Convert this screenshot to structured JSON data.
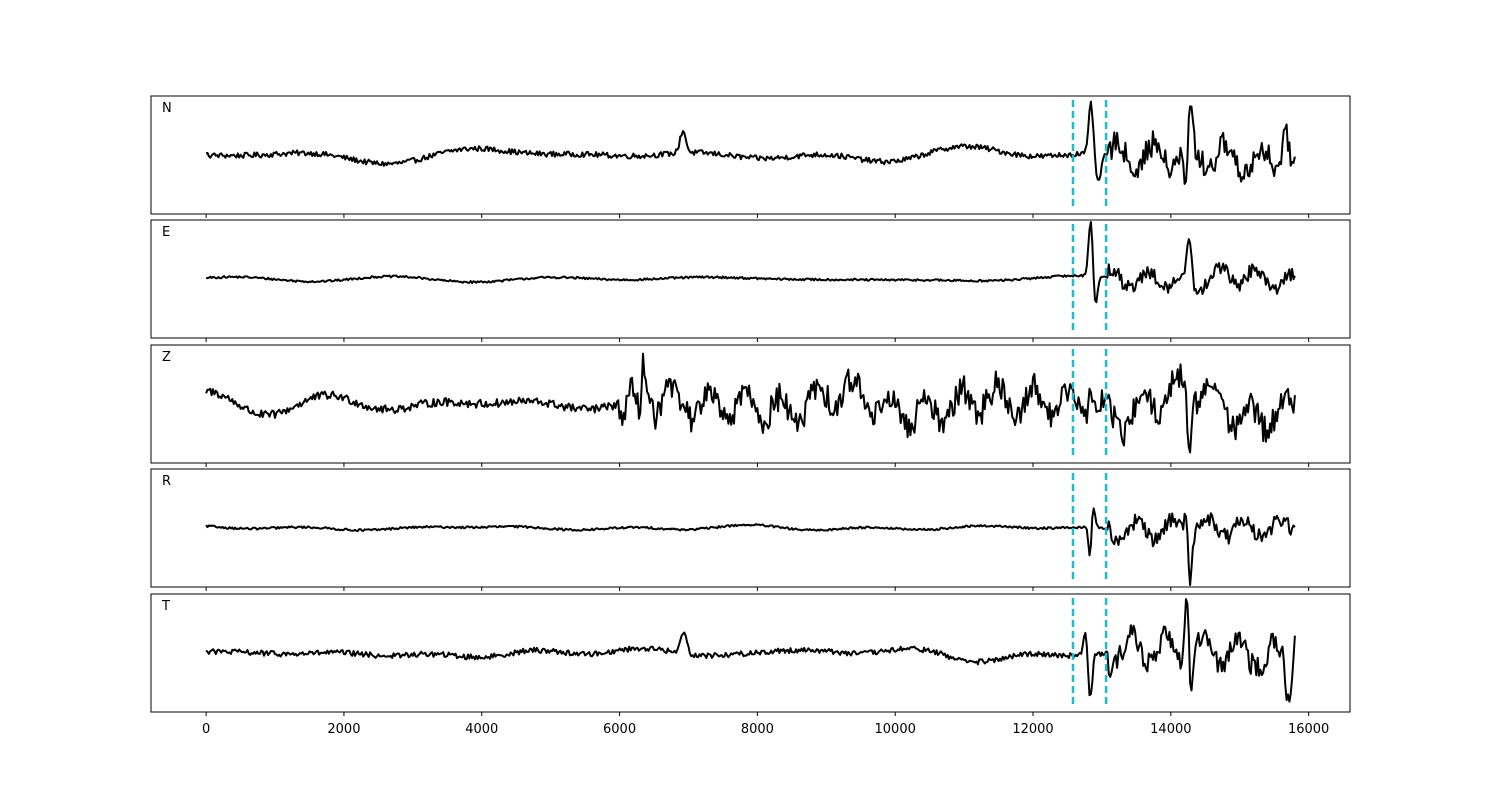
{
  "chart_data": {
    "type": "line",
    "layout": "5 stacked panels sharing one x axis",
    "xlim": [
      -800,
      16600
    ],
    "x_ticks": [
      0,
      2000,
      4000,
      6000,
      8000,
      10000,
      12000,
      14000,
      16000
    ],
    "x_tick_labels": [
      "0",
      "2000",
      "4000",
      "6000",
      "8000",
      "10000",
      "12000",
      "14000",
      "16000"
    ],
    "signal_range": [
      0,
      15800
    ],
    "y_axis_shown": false,
    "grid": false,
    "legend": "none",
    "trace_color": "#000000",
    "pick_color": "#17becf",
    "picks": [
      12580,
      13060
    ],
    "panels": [
      {
        "label": "N",
        "noise_amplitude": 0.18,
        "events": [
          {
            "x": 6920,
            "amp": 0.45,
            "width": 60
          },
          {
            "x": 12840,
            "amp": 1.0,
            "width": 45
          },
          {
            "x": 12950,
            "amp": -0.6,
            "width": 50
          },
          {
            "x": 14280,
            "amp": 1.0,
            "width": 40
          },
          {
            "x": 14220,
            "amp": -1.0,
            "width": 40
          },
          {
            "x": 15650,
            "amp": 0.6,
            "width": 70
          },
          {
            "x": 15780,
            "amp": -0.45,
            "width": 40
          }
        ],
        "coda_amplitude": 0.45,
        "coda_start": 13100
      },
      {
        "label": "E",
        "noise_amplitude": 0.07,
        "events": [
          {
            "x": 12840,
            "amp": 1.2,
            "width": 45
          },
          {
            "x": 12900,
            "amp": -0.7,
            "width": 45
          },
          {
            "x": 14270,
            "amp": 0.85,
            "width": 40
          },
          {
            "x": 14380,
            "amp": -0.3,
            "width": 60
          }
        ],
        "coda_amplitude": 0.28,
        "coda_start": 13100
      },
      {
        "label": "Z",
        "noise_amplitude": 0.28,
        "events": [
          {
            "x": 6340,
            "amp": 0.8,
            "width": 40
          },
          {
            "x": 6300,
            "amp": -0.8,
            "width": 40
          },
          {
            "x": 12830,
            "amp": 0.85,
            "width": 40
          },
          {
            "x": 14270,
            "amp": -1.1,
            "width": 40
          }
        ],
        "coda_amplitude": 0.5,
        "coda_start": 6000
      },
      {
        "label": "R",
        "noise_amplitude": 0.07,
        "events": [
          {
            "x": 12850,
            "amp": 0.8,
            "width": 50
          },
          {
            "x": 12830,
            "amp": -1.2,
            "width": 35
          },
          {
            "x": 14280,
            "amp": -0.9,
            "width": 40
          },
          {
            "x": 14220,
            "amp": 0.35,
            "width": 40
          }
        ],
        "coda_amplitude": 0.3,
        "coda_start": 13100
      },
      {
        "label": "T",
        "noise_amplitude": 0.18,
        "events": [
          {
            "x": 6930,
            "amp": 0.45,
            "width": 60
          },
          {
            "x": 12830,
            "amp": -0.9,
            "width": 40
          },
          {
            "x": 12760,
            "amp": 0.5,
            "width": 40
          },
          {
            "x": 14230,
            "amp": 1.15,
            "width": 40
          },
          {
            "x": 14300,
            "amp": -0.8,
            "width": 40
          },
          {
            "x": 15700,
            "amp": -0.6,
            "width": 70
          },
          {
            "x": 15800,
            "amp": 0.6,
            "width": 40
          }
        ],
        "coda_amplitude": 0.45,
        "coda_start": 13100
      }
    ]
  }
}
